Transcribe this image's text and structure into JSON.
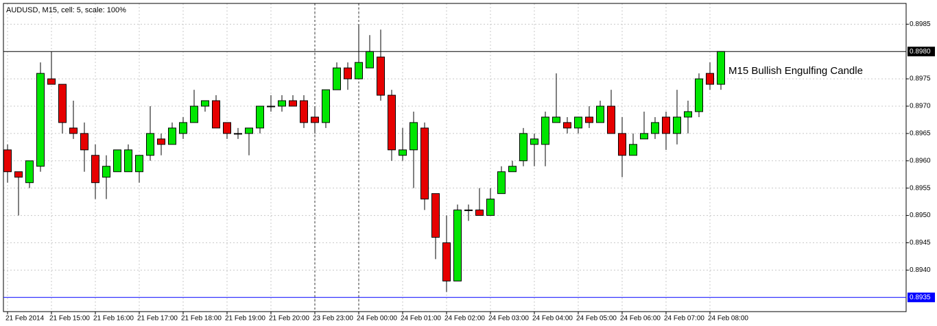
{
  "chart_data": {
    "type": "candlestick",
    "title": "AUDUSD, M15, cell: 5, scale: 100%",
    "annotation": "M15 Bullish Engulfing Candle",
    "categories": [
      "21 Feb 2014",
      null,
      null,
      null,
      "21 Feb 15:00",
      null,
      null,
      null,
      "21 Feb 16:00",
      null,
      null,
      null,
      "21 Feb 17:00",
      null,
      null,
      null,
      "21 Feb 18:00",
      null,
      null,
      null,
      "21 Feb 19:00",
      null,
      null,
      null,
      "21 Feb 20:00",
      null,
      null,
      null,
      "23 Feb 23:00",
      null,
      null,
      null,
      "24 Feb 00:00",
      null,
      null,
      null,
      "24 Feb 01:00",
      null,
      null,
      null,
      "24 Feb 02:00",
      null,
      null,
      null,
      "24 Feb 03:00",
      null,
      null,
      null,
      "24 Feb 04:00",
      null,
      null,
      null,
      "24 Feb 05:00",
      null,
      null,
      null,
      "24 Feb 06:00",
      null,
      null,
      null,
      "24 Feb 07:00",
      null,
      null,
      null,
      "24 Feb 08:00",
      null
    ],
    "open": [
      0.8962,
      0.8958,
      0.8956,
      0.8959,
      0.8975,
      0.8974,
      0.8966,
      0.8965,
      0.8961,
      0.8957,
      0.8958,
      0.8958,
      0.8958,
      0.8961,
      0.8964,
      0.8963,
      0.8965,
      0.8967,
      0.897,
      0.8971,
      0.8967,
      0.8965,
      0.8965,
      0.8966,
      0.897,
      0.897,
      0.8971,
      0.8971,
      0.8968,
      0.8967,
      0.8973,
      0.8977,
      0.8975,
      0.8977,
      0.8979,
      0.8972,
      0.8961,
      0.8962,
      0.8966,
      0.8954,
      0.8945,
      0.8938,
      0.8951,
      0.8951,
      0.895,
      0.8954,
      0.8958,
      0.896,
      0.8963,
      0.8963,
      0.8967,
      0.8967,
      0.8966,
      0.8968,
      0.8967,
      0.897,
      0.8965,
      0.8961,
      0.8964,
      0.8965,
      0.8968,
      0.8965,
      0.8968,
      0.8969,
      0.8976,
      0.8974
    ],
    "high": [
      0.8963,
      0.8958,
      0.896,
      0.8978,
      0.898,
      0.8974,
      0.8971,
      0.8967,
      0.8963,
      0.8961,
      0.8962,
      0.8963,
      0.8961,
      0.897,
      0.8965,
      0.8967,
      0.8968,
      0.8973,
      0.8971,
      0.8972,
      0.8967,
      0.8966,
      0.8966,
      0.897,
      0.8972,
      0.8972,
      0.8972,
      0.8972,
      0.897,
      0.8973,
      0.8978,
      0.8978,
      0.8985,
      0.8983,
      0.8984,
      0.8973,
      0.8966,
      0.8969,
      0.8967,
      0.8954,
      0.895,
      0.8952,
      0.8952,
      0.8955,
      0.8955,
      0.8959,
      0.896,
      0.8966,
      0.8965,
      0.8969,
      0.8976,
      0.8968,
      0.8968,
      0.897,
      0.8971,
      0.8973,
      0.8968,
      0.8965,
      0.8969,
      0.8968,
      0.8969,
      0.8973,
      0.8971,
      0.8976,
      0.8978,
      0.898
    ],
    "low": [
      0.8956,
      0.895,
      0.8955,
      0.8958,
      0.8974,
      0.8965,
      0.8964,
      0.8958,
      0.8953,
      0.8953,
      0.8958,
      0.8958,
      0.8956,
      0.896,
      0.8961,
      0.8963,
      0.8964,
      0.8967,
      0.8969,
      0.8966,
      0.8964,
      0.8964,
      0.8961,
      0.8965,
      0.8969,
      0.8969,
      0.897,
      0.8966,
      0.8965,
      0.8966,
      0.8973,
      0.8973,
      0.8975,
      0.8977,
      0.8971,
      0.896,
      0.896,
      0.8955,
      0.8951,
      0.8942,
      0.8936,
      0.8938,
      0.8949,
      0.895,
      0.895,
      0.8954,
      0.8958,
      0.8959,
      0.8959,
      0.8959,
      0.8967,
      0.8965,
      0.8965,
      0.8966,
      0.8967,
      0.8965,
      0.8957,
      0.8961,
      0.8964,
      0.8964,
      0.8962,
      0.8963,
      0.8965,
      0.8968,
      0.8973,
      0.8973
    ],
    "close": [
      0.8958,
      0.8957,
      0.896,
      0.8976,
      0.8974,
      0.8967,
      0.8965,
      0.8962,
      0.8956,
      0.8959,
      0.8962,
      0.8962,
      0.8961,
      0.8965,
      0.8963,
      0.8966,
      0.8967,
      0.897,
      0.8971,
      0.8966,
      0.8965,
      0.8965,
      0.8966,
      0.897,
      0.897,
      0.8971,
      0.897,
      0.8967,
      0.8967,
      0.8973,
      0.8977,
      0.8975,
      0.8978,
      0.898,
      0.8972,
      0.8962,
      0.8962,
      0.8967,
      0.8953,
      0.8946,
      0.8938,
      0.8951,
      0.8951,
      0.895,
      0.8953,
      0.8958,
      0.8959,
      0.8965,
      0.8964,
      0.8968,
      0.8968,
      0.8966,
      0.8968,
      0.8967,
      0.897,
      0.8965,
      0.8961,
      0.8963,
      0.8965,
      0.8967,
      0.8965,
      0.8968,
      0.8969,
      0.8975,
      0.8974,
      0.898
    ],
    "up_color": "#00e600",
    "down_color": "#e60000",
    "ylim": [
      0.89324,
      0.89888
    ],
    "yticks": [
      0.8985,
      {
        "value": 0.8975,
        "label": "0.8975"
      },
      {
        "value": 0.897,
        "label": "0.8970"
      },
      0.8965,
      {
        "value": 0.896,
        "label": "0.8960"
      },
      0.8955,
      {
        "value": 0.895,
        "label": "0.8950"
      },
      0.8945,
      {
        "value": 0.894,
        "label": "0.8940"
      }
    ],
    "hlines": [
      {
        "value": 0.898,
        "label": "0.8980",
        "color": "#000000"
      },
      {
        "value": 0.8935,
        "label": "0.8935",
        "color": "#0000ff"
      }
    ],
    "grid": true
  }
}
